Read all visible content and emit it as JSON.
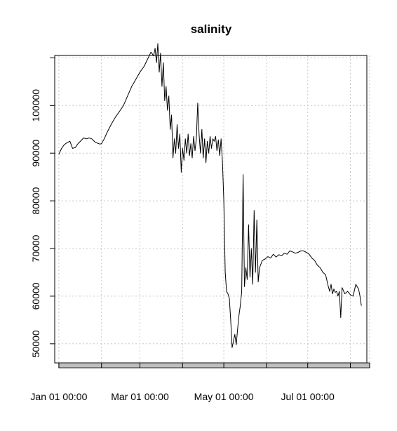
{
  "chart_data": {
    "type": "line",
    "title": "salinity",
    "xlabel": "",
    "ylabel": "",
    "ylim": [
      46000,
      110500
    ],
    "y_ticks": [
      50000,
      60000,
      70000,
      80000,
      90000,
      100000
    ],
    "y_tick_labels": [
      "50000",
      "60000",
      "70000",
      "80000",
      "90000",
      "100000"
    ],
    "y_extra_tick": 110000,
    "x_range_days": [
      -3,
      224
    ],
    "x_ticks_days": [
      0,
      31,
      59,
      90,
      120,
      151,
      181,
      212,
      226
    ],
    "x_labels": [
      {
        "day": 0,
        "text": "Jan 01 00:00"
      },
      {
        "day": 59,
        "text": "Mar 01 00:00"
      },
      {
        "day": 120,
        "text": "May 01 00:00"
      },
      {
        "day": 181,
        "text": "Jul 01 00:00"
      }
    ],
    "grid": true,
    "colors": {
      "series": "#000000",
      "grid": "#c8c8c8",
      "time_bar": "#bebebe"
    },
    "series": [
      {
        "values": [
          [
            0,
            89800
          ],
          [
            2,
            91000
          ],
          [
            4,
            91800
          ],
          [
            6,
            92200
          ],
          [
            8,
            92500
          ],
          [
            10,
            91000
          ],
          [
            12,
            91200
          ],
          [
            14,
            92000
          ],
          [
            16,
            92600
          ],
          [
            18,
            93200
          ],
          [
            20,
            93000
          ],
          [
            22,
            93200
          ],
          [
            24,
            93000
          ],
          [
            26,
            92400
          ],
          [
            28,
            92100
          ],
          [
            30,
            91900
          ],
          [
            31,
            92000
          ],
          [
            33,
            93000
          ],
          [
            35,
            94300
          ],
          [
            38,
            96000
          ],
          [
            41,
            97500
          ],
          [
            44,
            98700
          ],
          [
            47,
            100000
          ],
          [
            50,
            102000
          ],
          [
            53,
            104000
          ],
          [
            56,
            105500
          ],
          [
            59,
            107000
          ],
          [
            62,
            108200
          ],
          [
            65,
            110000
          ],
          [
            67,
            111200
          ],
          [
            69,
            110400
          ],
          [
            70,
            112000
          ],
          [
            71,
            109000
          ],
          [
            72,
            113000
          ],
          [
            73,
            107000
          ],
          [
            74,
            111000
          ],
          [
            75,
            104000
          ],
          [
            76,
            109000
          ],
          [
            77,
            101000
          ],
          [
            78,
            104000
          ],
          [
            79,
            99000
          ],
          [
            80,
            102000
          ],
          [
            81,
            95000
          ],
          [
            82,
            98000
          ],
          [
            83,
            89000
          ],
          [
            84,
            93000
          ],
          [
            85,
            90000
          ],
          [
            86,
            96000
          ],
          [
            87,
            91000
          ],
          [
            88,
            94000
          ],
          [
            89,
            86000
          ],
          [
            90,
            91000
          ],
          [
            91,
            88500
          ],
          [
            92,
            93000
          ],
          [
            93,
            90000
          ],
          [
            94,
            94000
          ],
          [
            95,
            89500
          ],
          [
            96,
            92000
          ],
          [
            97,
            89000
          ],
          [
            98,
            93500
          ],
          [
            99,
            90500
          ],
          [
            100,
            93000
          ],
          [
            101,
            100500
          ],
          [
            102,
            94000
          ],
          [
            103,
            90000
          ],
          [
            104,
            95000
          ],
          [
            105,
            89000
          ],
          [
            106,
            93000
          ],
          [
            107,
            88000
          ],
          [
            108,
            92500
          ],
          [
            109,
            90000
          ],
          [
            110,
            93500
          ],
          [
            111,
            91000
          ],
          [
            112,
            93000
          ],
          [
            113,
            92500
          ],
          [
            114,
            93500
          ],
          [
            115,
            90500
          ],
          [
            116,
            92800
          ],
          [
            117,
            89500
          ],
          [
            118,
            93000
          ],
          [
            119,
            88000
          ],
          [
            120,
            80000
          ],
          [
            121,
            65000
          ],
          [
            122,
            61000
          ],
          [
            123,
            60500
          ],
          [
            124,
            59500
          ],
          [
            125,
            55000
          ],
          [
            126,
            49200
          ],
          [
            127,
            50500
          ],
          [
            128,
            52000
          ],
          [
            129,
            49800
          ],
          [
            130,
            53000
          ],
          [
            131,
            56000
          ],
          [
            132,
            58000
          ],
          [
            133,
            61000
          ],
          [
            134,
            85500
          ],
          [
            135,
            62000
          ],
          [
            136,
            66000
          ],
          [
            137,
            63500
          ],
          [
            138,
            75000
          ],
          [
            139,
            64000
          ],
          [
            140,
            70000
          ],
          [
            141,
            62500
          ],
          [
            142,
            78000
          ],
          [
            143,
            65000
          ],
          [
            144,
            76000
          ],
          [
            145,
            63000
          ],
          [
            146,
            66000
          ],
          [
            148,
            67500
          ],
          [
            150,
            67800
          ],
          [
            152,
            68300
          ],
          [
            154,
            68000
          ],
          [
            156,
            68800
          ],
          [
            158,
            68200
          ],
          [
            160,
            68700
          ],
          [
            162,
            68500
          ],
          [
            164,
            69000
          ],
          [
            166,
            68800
          ],
          [
            168,
            69500
          ],
          [
            170,
            69300
          ],
          [
            172,
            69000
          ],
          [
            174,
            69200
          ],
          [
            176,
            69500
          ],
          [
            178,
            69500
          ],
          [
            180,
            69200
          ],
          [
            182,
            68800
          ],
          [
            184,
            68000
          ],
          [
            186,
            67500
          ],
          [
            188,
            66500
          ],
          [
            190,
            66000
          ],
          [
            192,
            65000
          ],
          [
            194,
            64500
          ],
          [
            196,
            62000
          ],
          [
            197,
            61000
          ],
          [
            198,
            62500
          ],
          [
            199,
            60500
          ],
          [
            200,
            61500
          ],
          [
            201,
            60800
          ],
          [
            202,
            61000
          ],
          [
            203,
            60000
          ],
          [
            204,
            61000
          ],
          [
            205,
            55500
          ],
          [
            206,
            61800
          ],
          [
            208,
            60500
          ],
          [
            210,
            61000
          ],
          [
            212,
            60300
          ],
          [
            214,
            60000
          ],
          [
            216,
            62500
          ],
          [
            218,
            61500
          ],
          [
            219,
            60000
          ],
          [
            220,
            58000
          ]
        ]
      }
    ]
  }
}
